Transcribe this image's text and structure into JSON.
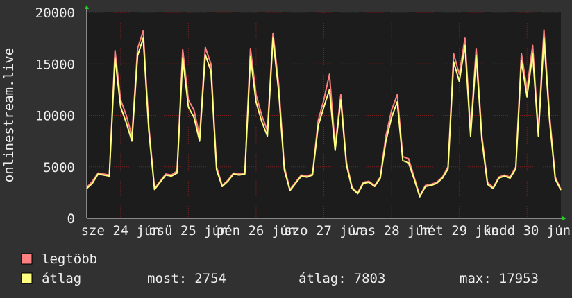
{
  "chart_data": {
    "type": "line",
    "y_label": "onlinestream.live",
    "x": [
      0,
      2,
      4,
      6,
      8,
      10,
      12,
      14,
      16,
      18,
      20,
      22,
      24,
      26,
      28,
      30,
      32,
      34,
      36,
      38,
      40,
      42,
      44,
      46,
      48,
      50,
      52,
      54,
      56,
      58,
      60,
      62,
      64,
      66,
      68,
      70,
      72,
      74,
      76,
      78,
      80,
      82,
      84,
      86,
      88,
      90,
      92,
      94,
      96,
      98,
      100,
      102,
      104,
      106,
      108,
      110,
      112,
      114,
      116,
      118,
      120,
      122,
      124,
      126,
      128,
      130,
      132,
      134,
      136,
      138,
      140,
      142,
      144,
      146,
      148,
      150,
      152,
      154,
      156,
      158,
      160,
      162,
      164,
      166,
      168
    ],
    "xlim": [
      0,
      168
    ],
    "xticks": [
      {
        "value": 12,
        "label": "sze 24 jún"
      },
      {
        "value": 36,
        "label": "csü 25 jún"
      },
      {
        "value": 60,
        "label": "pén 26 jún"
      },
      {
        "value": 84,
        "label": "szo 27 jún"
      },
      {
        "value": 108,
        "label": "vas 28 jún"
      },
      {
        "value": 132,
        "label": "hét 29 jún"
      },
      {
        "value": 156,
        "label": "kedd 30 jún"
      }
    ],
    "ylim": [
      0,
      20000
    ],
    "yticks": [
      0,
      5000,
      10000,
      15000,
      20000
    ],
    "grid": true,
    "series": [
      {
        "name": "legtöbb",
        "color": "#ff8080",
        "values": [
          3000,
          3600,
          4400,
          4300,
          4200,
          16300,
          11500,
          10000,
          8000,
          16500,
          18200,
          9000,
          2900,
          3600,
          4300,
          4200,
          4600,
          16400,
          11500,
          10500,
          8000,
          16600,
          15000,
          5000,
          3200,
          3700,
          4400,
          4300,
          4400,
          16500,
          12000,
          10000,
          8500,
          18000,
          13000,
          5000,
          2800,
          3500,
          4200,
          4100,
          4300,
          9500,
          11500,
          14000,
          7000,
          12000,
          5500,
          3000,
          2500,
          3500,
          3600,
          3200,
          4000,
          8000,
          10500,
          12000,
          6000,
          5800,
          4000,
          2200,
          3200,
          3300,
          3500,
          4000,
          5000,
          16000,
          14000,
          17500,
          8500,
          16500,
          8000,
          3500,
          3000,
          4000,
          4200,
          4000,
          5000,
          16000,
          12500,
          16800,
          8500,
          18300,
          10000,
          4000,
          2800
        ]
      },
      {
        "name": "átlag",
        "color": "#ffff80",
        "values": [
          2900,
          3400,
          4300,
          4200,
          4100,
          15600,
          10800,
          9300,
          7500,
          15800,
          17500,
          8500,
          2800,
          3500,
          4200,
          4100,
          4400,
          15600,
          10800,
          9800,
          7500,
          15900,
          14300,
          4700,
          3100,
          3600,
          4300,
          4200,
          4300,
          15700,
          11300,
          9400,
          8000,
          17500,
          12300,
          4700,
          2700,
          3400,
          4100,
          4000,
          4200,
          9000,
          10800,
          12500,
          6600,
          11500,
          5200,
          2900,
          2400,
          3400,
          3500,
          3100,
          3900,
          7500,
          9800,
          11300,
          5600,
          5400,
          3800,
          2100,
          3100,
          3200,
          3400,
          3900,
          4800,
          15200,
          13300,
          16800,
          8000,
          15800,
          7600,
          3300,
          2900,
          3900,
          4100,
          3900,
          4800,
          15300,
          11800,
          16000,
          8000,
          17500,
          9500,
          3800,
          2754
        ]
      }
    ],
    "stats": [
      {
        "label": "most:",
        "value": 2754
      },
      {
        "label": "átlag:",
        "value": 7803
      },
      {
        "label": "max:",
        "value": 17953
      }
    ]
  }
}
